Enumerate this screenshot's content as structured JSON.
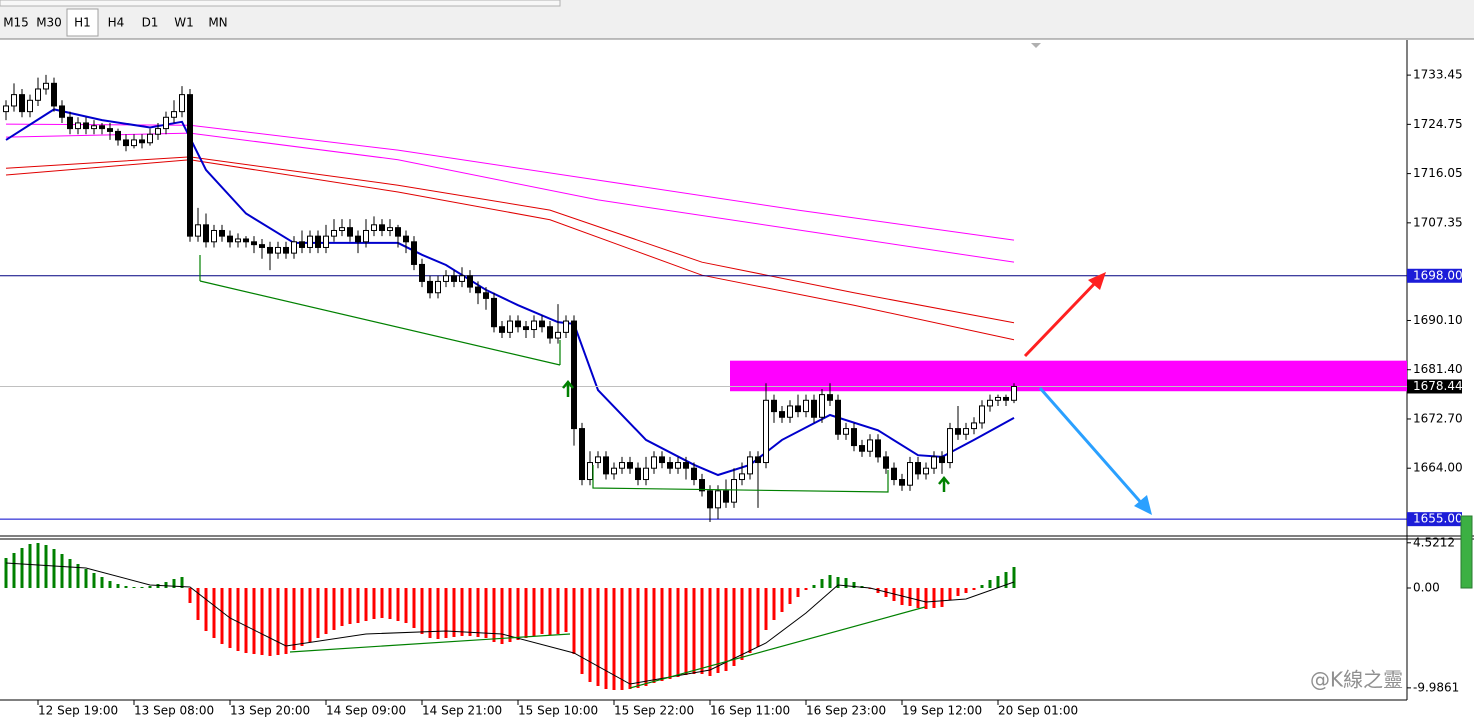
{
  "toolbar": {
    "timeframes": [
      "M15",
      "M30",
      "H1",
      "H4",
      "D1",
      "W1",
      "MN"
    ],
    "selected": 2
  },
  "watermark": "@K線之靈",
  "chart_data": [
    {
      "type": "candlestick",
      "categories": [
        null,
        null,
        null,
        null,
        "12 Sep 19:00",
        null,
        null,
        null,
        null,
        null,
        null,
        null,
        null,
        null,
        null,
        null,
        "13 Sep 08:00",
        null,
        null,
        null,
        null,
        null,
        null,
        null,
        null,
        null,
        null,
        null,
        "13 Sep 20:00",
        null,
        null,
        null,
        null,
        null,
        null,
        null,
        null,
        null,
        null,
        null,
        "14 Sep 09:00",
        null,
        null,
        null,
        null,
        null,
        null,
        null,
        null,
        null,
        null,
        null,
        "14 Sep 21:00",
        null,
        null,
        null,
        null,
        null,
        null,
        null,
        null,
        null,
        null,
        null,
        "15 Sep 10:00",
        null,
        null,
        null,
        null,
        null,
        null,
        null,
        null,
        null,
        null,
        null,
        "15 Sep 22:00",
        null,
        null,
        null,
        null,
        null,
        null,
        null,
        null,
        null,
        null,
        null,
        "16 Sep 11:00",
        null,
        null,
        null,
        null,
        null,
        null,
        null,
        null,
        null,
        null,
        null,
        "16 Sep 23:00",
        null,
        null,
        null,
        null,
        null,
        null,
        null,
        null,
        null,
        null,
        null,
        "19 Sep 12:00",
        null,
        null,
        null,
        null,
        null,
        null,
        null,
        null,
        null,
        null,
        null,
        "20 Sep 01:00",
        null,
        null
      ],
      "open": [
        1727,
        1728,
        1730,
        1727,
        1729,
        1731,
        1732,
        1728,
        1726,
        1724,
        1725,
        1724,
        1724.5,
        1724,
        1723.5,
        1722,
        1721,
        1722,
        1721.5,
        1723,
        1724,
        1726,
        1727,
        1730,
        1705,
        1707,
        1704,
        1706,
        1705,
        1704,
        1704.5,
        1704,
        1703.5,
        1703,
        1702,
        1703,
        1702,
        1704,
        1703,
        1705,
        1703,
        1705,
        1706,
        1706.5,
        1705,
        1704,
        1706,
        1707,
        1706,
        1706.5,
        1705,
        1704,
        1700,
        1697,
        1695,
        1697,
        1698,
        1697,
        1698,
        1696,
        1695,
        1694,
        1689,
        1688,
        1690,
        1689,
        1688.5,
        1690,
        1689,
        1687,
        1688,
        1690,
        1671,
        1662,
        1665,
        1666,
        1663,
        1664,
        1665,
        1664,
        1662,
        1664,
        1666,
        1665,
        1664,
        1665,
        1664,
        1662,
        1660,
        1657,
        1660,
        1658,
        1662,
        1663,
        1666,
        1665,
        1676,
        1674,
        1673,
        1675,
        1674,
        1676,
        1673,
        1677,
        1676,
        1670,
        1671,
        1668,
        1667,
        1669,
        1666,
        1664,
        1662,
        1661,
        1665,
        1663,
        1664,
        1666,
        1665,
        1671,
        1670,
        1671,
        1672,
        1675,
        1676,
        1676.5,
        1676
      ],
      "high": [
        1729,
        1732,
        1731,
        1730,
        1733,
        1733.5,
        1733,
        1729,
        1727,
        1726,
        1726,
        1725.5,
        1725,
        1725,
        1724,
        1723,
        1723,
        1723,
        1724,
        1725,
        1727,
        1729,
        1731.5,
        1731,
        1710,
        1709,
        1707,
        1707,
        1706,
        1705.5,
        1705,
        1705,
        1704.5,
        1704,
        1704,
        1704,
        1705,
        1706,
        1706,
        1706,
        1707,
        1708,
        1708,
        1708,
        1706,
        1708,
        1708.5,
        1708,
        1708,
        1707,
        1706,
        1705,
        1701,
        1698,
        1698,
        1699,
        1699,
        1699.5,
        1699,
        1697,
        1696,
        1695,
        1690,
        1691,
        1691,
        1690,
        1691,
        1691,
        1690,
        1693,
        1691,
        1691,
        1672,
        1667,
        1667,
        1667,
        1665,
        1666,
        1666,
        1665,
        1666,
        1667,
        1667,
        1666,
        1666,
        1666,
        1665,
        1663,
        1661,
        1661,
        1662,
        1664,
        1665,
        1667,
        1667,
        1679,
        1677,
        1675,
        1676,
        1677,
        1677,
        1677,
        1678,
        1679,
        1677,
        1672,
        1672,
        1669,
        1670,
        1670,
        1667,
        1665,
        1663,
        1666,
        1666,
        1665,
        1667,
        1667,
        1672,
        1675,
        1672,
        1673,
        1676,
        1677,
        1677,
        1677,
        1679
      ],
      "low": [
        1725.5,
        1727,
        1726,
        1726,
        1728,
        1730,
        1727,
        1725,
        1723,
        1723,
        1723,
        1723,
        1723,
        1722,
        1721,
        1720,
        1720.5,
        1720.5,
        1721,
        1722,
        1723,
        1725,
        1726,
        1704,
        1704,
        1703,
        1703,
        1704,
        1703,
        1703,
        1703,
        1702,
        1701,
        1699,
        1701,
        1701,
        1701,
        1702,
        1702,
        1702,
        1702,
        1704,
        1705,
        1704,
        1702,
        1703,
        1705,
        1705,
        1705,
        1703,
        1702,
        1699,
        1696,
        1694,
        1694,
        1696,
        1696,
        1696,
        1695,
        1693,
        1692,
        1688,
        1687,
        1687,
        1688,
        1687,
        1687,
        1688,
        1686,
        1686,
        1687,
        1668,
        1661,
        1661,
        1664,
        1662,
        1662,
        1663,
        1663,
        1661,
        1661,
        1663,
        1664,
        1663,
        1663,
        1662,
        1661,
        1659,
        1654.5,
        1655,
        1657,
        1657,
        1661,
        1662,
        1657,
        1664,
        1672,
        1672,
        1672,
        1673,
        1673,
        1672,
        1672,
        1675,
        1669,
        1669,
        1667,
        1666,
        1666,
        1665,
        1663,
        1661,
        1660,
        1660,
        1662,
        1662,
        1663,
        1663,
        1664,
        1669,
        1669,
        1670,
        1671,
        1674,
        1675,
        1675,
        1675.5
      ],
      "close": [
        1728,
        1730,
        1727,
        1729,
        1731,
        1732,
        1728,
        1726,
        1724,
        1725,
        1724,
        1724.5,
        1724,
        1723.5,
        1722,
        1721,
        1722,
        1721.5,
        1723,
        1724,
        1726,
        1727,
        1730,
        1705,
        1707,
        1704,
        1706,
        1705,
        1704,
        1704.5,
        1704,
        1703.5,
        1703,
        1702,
        1703,
        1702,
        1704,
        1703,
        1705,
        1703,
        1705,
        1706,
        1706.5,
        1705,
        1704,
        1706,
        1707,
        1706,
        1706.5,
        1705,
        1704,
        1700,
        1697,
        1695,
        1697,
        1698,
        1697,
        1698,
        1696,
        1695,
        1694,
        1689,
        1688,
        1690,
        1689,
        1688.5,
        1690,
        1689,
        1687,
        1688,
        1690,
        1671,
        1662,
        1665,
        1666,
        1663,
        1664,
        1665,
        1664,
        1662,
        1664,
        1666,
        1665,
        1664,
        1665,
        1664,
        1662,
        1660,
        1657,
        1660,
        1658,
        1662,
        1663,
        1666,
        1665,
        1676,
        1674,
        1673,
        1675,
        1674,
        1676,
        1673,
        1677,
        1676,
        1670,
        1671,
        1668,
        1667,
        1669,
        1666,
        1664,
        1662,
        1661,
        1665,
        1663,
        1664,
        1666,
        1665,
        1671,
        1670,
        1671,
        1672,
        1675,
        1676,
        1676.5,
        1676,
        1678.44
      ],
      "lines": [
        {
          "color": "#ff00ff",
          "x": [
            0,
            23,
            49,
            74,
            99,
            126
          ],
          "values": [
            1724.8,
            1724.6,
            1720.2,
            1714.9,
            1709.6,
            1704.3
          ]
        },
        {
          "color": "#ff00ff",
          "x": [
            0,
            23,
            49,
            74,
            99,
            126
          ],
          "values": [
            1722.5,
            1723.2,
            1718.5,
            1711.4,
            1706.1,
            1700.4
          ]
        },
        {
          "color": "#e00000",
          "x": [
            0,
            23,
            49,
            68,
            87,
            106,
            126
          ],
          "values": [
            1717,
            1719,
            1714,
            1709.6,
            1700.4,
            1695,
            1689.7
          ]
        },
        {
          "color": "#e00000",
          "x": [
            0,
            23,
            49,
            68,
            87,
            106,
            126
          ],
          "values": [
            1715.8,
            1718.5,
            1712.8,
            1707.9,
            1698.1,
            1692.8,
            1686.7
          ]
        },
        {
          "color": "#0000cc",
          "x": [
            0,
            6,
            12,
            18,
            22,
            25,
            30,
            36,
            43,
            49,
            52,
            55,
            60,
            64,
            69,
            71,
            74,
            80,
            86,
            89,
            93,
            97,
            103,
            109,
            114,
            117,
            121,
            126
          ],
          "values": [
            1722,
            1727.4,
            1725.5,
            1724.2,
            1725.2,
            1716.7,
            1709,
            1703.8,
            1703.8,
            1703.8,
            1701.7,
            1699.9,
            1695.5,
            1692.8,
            1689.8,
            1689.5,
            1677.8,
            1669,
            1664.6,
            1662.8,
            1664.6,
            1669,
            1673.4,
            1670.7,
            1666.3,
            1666,
            1669,
            1672.9
          ]
        }
      ],
      "zone": {
        "low": 1677.6,
        "high": 1683,
        "from_index": 91,
        "color": "#ff00ff"
      },
      "price_lines": [
        {
          "value": 1698,
          "label": "1698.00",
          "color": "#000080",
          "box": "#1c1cd8"
        },
        {
          "value": 1678.44,
          "color": "#c0c0c0",
          "box": "#000000"
        },
        {
          "value": 1655,
          "label": "1655.00",
          "color": "#0000cc",
          "box": "#1c1cd8"
        }
      ],
      "ylim": [
        1652.2,
        1739.3
      ],
      "yticks": [
        1733.45,
        1724.75,
        1716.05,
        1707.35,
        {
          "value": 1690.1,
          "label": "1690.10"
        },
        {
          "value": 1681.4,
          "label": "1681.40"
        },
        {
          "value": 1672.7,
          "label": "1672.70"
        },
        {
          "value": 1664,
          "label": "1664.00"
        }
      ]
    },
    {
      "type": "oscillator",
      "values": [
        3.0,
        3.5,
        4.0,
        4.4,
        4.5,
        4.3,
        3.9,
        3.4,
        2.9,
        2.4,
        1.9,
        1.5,
        1.1,
        0.7,
        0.4,
        0.2,
        0.1,
        0.1,
        0.2,
        0.4,
        0.6,
        0.9,
        1.1,
        -1.5,
        -3.2,
        -4.3,
        -5.0,
        -5.6,
        -6.0,
        -6.3,
        -6.5,
        -6.6,
        -6.7,
        -6.8,
        -6.7,
        -6.6,
        -6.2,
        -5.8,
        -5.4,
        -5.0,
        -4.6,
        -4.2,
        -3.8,
        -3.6,
        -3.5,
        -3.3,
        -3.1,
        -3.0,
        -3.1,
        -3.3,
        -3.5,
        -4.0,
        -4.6,
        -5.0,
        -5.1,
        -5.0,
        -4.9,
        -4.8,
        -4.8,
        -4.9,
        -5.0,
        -5.4,
        -5.6,
        -5.4,
        -5.2,
        -5.0,
        -4.8,
        -4.6,
        -4.7,
        -4.6,
        -4.4,
        -6.6,
        -8.6,
        -9.4,
        -9.8,
        -10.1,
        -10.2,
        -10.2,
        -10.1,
        -10.0,
        -9.8,
        -9.5,
        -9.3,
        -9.1,
        -8.9,
        -8.7,
        -8.6,
        -8.6,
        -8.8,
        -8.5,
        -8.3,
        -7.8,
        -7.2,
        -6.5,
        -5.9,
        -4.2,
        -3.2,
        -2.4,
        -1.6,
        -0.9,
        -0.2,
        0.3,
        0.9,
        1.3,
        1.1,
        1.0,
        0.6,
        0.2,
        -0.1,
        -0.5,
        -0.9,
        -1.3,
        -1.7,
        -1.8,
        -2.0,
        -2.1,
        -2.0,
        -1.9,
        -1.2,
        -0.8,
        -0.5,
        -0.2,
        0.3,
        0.8,
        1.2,
        1.6,
        2.1
      ],
      "up_color": "#008000",
      "down_color": "#ff0000",
      "signal": {
        "color": "#000000",
        "x": [
          0,
          10,
          18,
          23,
          28,
          35,
          45,
          55,
          62,
          71,
          78,
          88,
          95,
          100,
          104,
          108,
          115,
          120,
          126
        ],
        "values": [
          2.5,
          2.0,
          0.3,
          0.1,
          -3.0,
          -5.8,
          -4.6,
          -4.3,
          -4.6,
          -6.5,
          -9.6,
          -8.2,
          -5.5,
          -2.5,
          0.3,
          0.0,
          -1.4,
          -1.1,
          0.6
        ]
      },
      "ylim": [
        -11.2,
        4.8
      ],
      "yticks": [
        4.5212,
        {
          "value": 0,
          "label": "0.00"
        },
        -9.9861
      ]
    }
  ]
}
